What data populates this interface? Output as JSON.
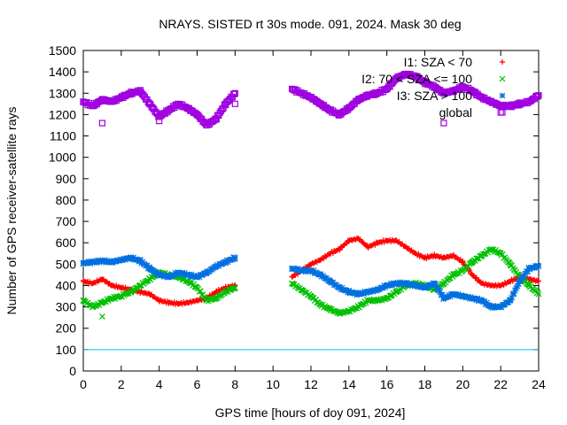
{
  "chart_data": {
    "type": "scatter",
    "title": "NRAYS. SISTED rt 30s mode. 091, 2024. Mask 30 deg",
    "xlabel": "GPS time [hours of doy 091, 2024]",
    "ylabel": "Number of GPS receiver-satellite rays",
    "xlim": [
      0,
      24
    ],
    "ylim": [
      0,
      1500
    ],
    "x_ticks": [
      0,
      2,
      4,
      6,
      8,
      10,
      12,
      14,
      16,
      18,
      20,
      22,
      24
    ],
    "y_ticks": [
      0,
      100,
      200,
      300,
      400,
      500,
      600,
      700,
      800,
      900,
      1000,
      1100,
      1200,
      1300,
      1400,
      1500
    ],
    "threshold_line": {
      "value": 100,
      "color": "#00c0e0"
    },
    "legend": {
      "placement": "top-right"
    },
    "series": [
      {
        "name": "I1: SZA < 70",
        "marker": "+",
        "color": "#ff0000",
        "x": [
          0,
          0.5,
          1,
          1.5,
          2,
          2.5,
          3,
          3.5,
          4,
          4.5,
          5,
          5.5,
          6,
          6.5,
          7,
          7.5,
          8,
          11,
          11.5,
          12,
          12.5,
          13,
          13.5,
          14,
          14.5,
          15,
          15.5,
          16,
          16.5,
          17,
          17.5,
          18,
          18.5,
          19,
          19.5,
          20,
          20.5,
          21,
          21.5,
          22,
          22.5,
          23,
          23.5,
          24
        ],
        "values": [
          420,
          410,
          430,
          400,
          390,
          380,
          370,
          360,
          330,
          320,
          315,
          320,
          330,
          340,
          370,
          390,
          400,
          440,
          470,
          500,
          520,
          550,
          570,
          610,
          620,
          580,
          600,
          610,
          610,
          580,
          550,
          530,
          540,
          530,
          540,
          510,
          450,
          410,
          400,
          400,
          420,
          440,
          430,
          420
        ]
      },
      {
        "name": "I2: 70 < SZA <= 100",
        "marker": "x",
        "color": "#00c000",
        "x": [
          0,
          0.5,
          1,
          1.5,
          2,
          2.5,
          3,
          3.5,
          4,
          4.5,
          5,
          5.5,
          6,
          6.5,
          7,
          7.5,
          8,
          11,
          11.5,
          12,
          12.5,
          13,
          13.5,
          14,
          14.5,
          15,
          15.5,
          16,
          16.5,
          17,
          17.5,
          18,
          18.5,
          19,
          19.5,
          20,
          20.5,
          21,
          21.5,
          22,
          22.5,
          23,
          23.5,
          24
        ],
        "values": [
          330,
          300,
          320,
          340,
          350,
          370,
          400,
          430,
          460,
          450,
          440,
          420,
          390,
          330,
          340,
          370,
          390,
          410,
          380,
          350,
          310,
          290,
          270,
          280,
          300,
          330,
          330,
          340,
          370,
          400,
          410,
          400,
          380,
          410,
          450,
          470,
          510,
          540,
          570,
          550,
          500,
          440,
          400,
          360
        ],
        "outliers": [
          {
            "x": 1.0,
            "y": 255
          }
        ]
      },
      {
        "name": "I3: SZA > 100",
        "marker": "*",
        "color": "#0070e0",
        "x": [
          0,
          0.5,
          1,
          1.5,
          2,
          2.5,
          3,
          3.5,
          4,
          4.5,
          5,
          5.5,
          6,
          6.5,
          7,
          7.5,
          8,
          11,
          11.5,
          12,
          12.5,
          13,
          13.5,
          14,
          14.5,
          15,
          15.5,
          16,
          16.5,
          17,
          17.5,
          18,
          18.5,
          19,
          19.5,
          20,
          20.5,
          21,
          21.5,
          22,
          22.5,
          23,
          23.5,
          24
        ],
        "values": [
          505,
          510,
          515,
          510,
          520,
          530,
          515,
          480,
          450,
          440,
          460,
          450,
          440,
          460,
          490,
          510,
          530,
          480,
          470,
          470,
          450,
          420,
          390,
          370,
          360,
          370,
          380,
          400,
          410,
          410,
          400,
          390,
          410,
          340,
          360,
          350,
          340,
          330,
          300,
          300,
          330,
          420,
          480,
          490
        ]
      },
      {
        "name": "global",
        "marker": "square",
        "color": "#a000e0",
        "x": [
          0,
          0.5,
          1,
          1.5,
          2,
          2.5,
          3,
          3.5,
          4,
          4.5,
          5,
          5.5,
          6,
          6.5,
          7,
          7.5,
          8,
          11,
          11.5,
          12,
          12.5,
          13,
          13.5,
          14,
          14.5,
          15,
          15.5,
          16,
          16.5,
          17,
          17.5,
          18,
          18.5,
          19,
          19.5,
          20,
          20.5,
          21,
          21.5,
          22,
          22.5,
          23,
          23.5,
          24
        ],
        "values": [
          1260,
          1240,
          1270,
          1260,
          1280,
          1300,
          1310,
          1250,
          1190,
          1220,
          1250,
          1230,
          1200,
          1150,
          1180,
          1250,
          1300,
          1320,
          1300,
          1280,
          1250,
          1220,
          1200,
          1230,
          1270,
          1290,
          1300,
          1320,
          1370,
          1390,
          1380,
          1350,
          1330,
          1300,
          1310,
          1330,
          1310,
          1280,
          1260,
          1240,
          1240,
          1250,
          1260,
          1290
        ],
        "outliers": [
          {
            "x": 1.0,
            "y": 1160
          },
          {
            "x": 4.0,
            "y": 1170
          },
          {
            "x": 8.0,
            "y": 1250
          },
          {
            "x": 19.0,
            "y": 1160
          },
          {
            "x": 22.0,
            "y": 1210
          }
        ]
      }
    ]
  }
}
